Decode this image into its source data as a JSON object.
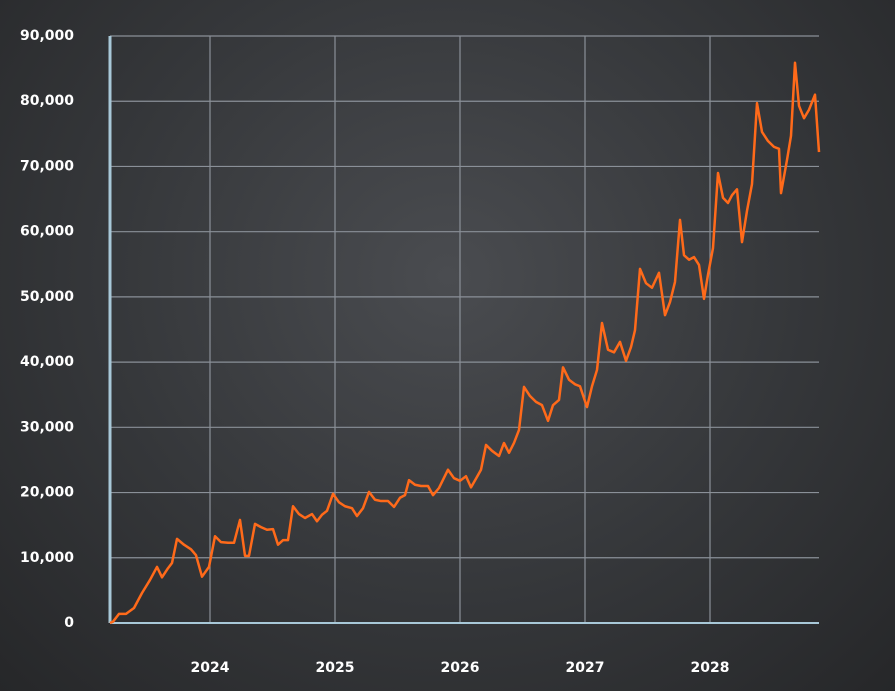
{
  "chart_data": {
    "type": "line",
    "x": [
      2023.2,
      2023.224,
      2023.272,
      2023.328,
      2023.392,
      2023.456,
      2023.52,
      2023.576,
      2023.616,
      2023.664,
      2023.696,
      2023.736,
      2023.792,
      2023.848,
      2023.888,
      2023.936,
      2023.992,
      2024.04,
      2024.088,
      2024.144,
      2024.192,
      2024.24,
      2024.28,
      2024.312,
      2024.36,
      2024.408,
      2024.456,
      2024.504,
      2024.544,
      2024.584,
      2024.624,
      2024.664,
      2024.712,
      2024.76,
      2024.816,
      2024.856,
      2024.896,
      2024.936,
      2024.984,
      2025.032,
      2025.08,
      2025.136,
      2025.176,
      2025.224,
      2025.272,
      2025.32,
      2025.368,
      2025.424,
      2025.472,
      2025.52,
      2025.56,
      2025.592,
      2025.64,
      2025.688,
      2025.744,
      2025.784,
      2025.832,
      2025.904,
      2025.952,
      2026.0,
      2026.048,
      2026.088,
      2026.136,
      2026.168,
      2026.208,
      2026.256,
      2026.312,
      2026.352,
      2026.392,
      2026.432,
      2026.472,
      2026.512,
      2026.56,
      2026.608,
      2026.656,
      2026.704,
      2026.744,
      2026.792,
      2026.824,
      2026.872,
      2026.92,
      2026.96,
      2027.016,
      2027.056,
      2027.096,
      2027.136,
      2027.184,
      2027.232,
      2027.28,
      2027.328,
      2027.368,
      2027.4,
      2027.44,
      2027.488,
      2027.536,
      2027.592,
      2027.64,
      2027.68,
      2027.72,
      2027.76,
      2027.792,
      2027.832,
      2027.872,
      2027.912,
      2027.952,
      2027.984,
      2028.024,
      2028.064,
      2028.104,
      2028.144,
      2028.176,
      2028.216,
      2028.256,
      2028.296,
      2028.336,
      2028.376,
      2028.416,
      2028.464,
      2028.512,
      2028.552,
      2028.568,
      2028.616,
      2028.648,
      2028.68,
      2028.712,
      2028.752,
      2028.792,
      2028.84,
      2028.872
    ],
    "series": [
      {
        "color": "#ff6a1a",
        "values": [
          0,
          200,
          1400,
          1400,
          2300,
          4600,
          6600,
          8600,
          7000,
          8400,
          9200,
          12900,
          12000,
          11300,
          10400,
          7100,
          8600,
          13300,
          12400,
          12300,
          12300,
          15800,
          10300,
          10300,
          15200,
          14700,
          14300,
          14400,
          12000,
          12700,
          12700,
          17900,
          16700,
          16100,
          16700,
          15600,
          16600,
          17200,
          19800,
          18500,
          17900,
          17600,
          16400,
          17600,
          20100,
          18900,
          18700,
          18700,
          17800,
          19200,
          19600,
          21900,
          21200,
          21000,
          21000,
          19600,
          20700,
          23500,
          22200,
          21800,
          22500,
          20800,
          22400,
          23500,
          27300,
          26400,
          25600,
          27600,
          26100,
          27600,
          29600,
          36200,
          34800,
          33900,
          33400,
          31000,
          33400,
          34200,
          39200,
          37300,
          36600,
          36300,
          33100,
          36300,
          38800,
          46000,
          41900,
          41500,
          43100,
          40200,
          42300,
          44900,
          54300,
          52100,
          51400,
          53700,
          47200,
          49200,
          52300,
          61800,
          56400,
          55700,
          56100,
          54900,
          49700,
          53400,
          57500,
          69000,
          65200,
          64400,
          65600,
          66500,
          58400,
          63200,
          67300,
          79700,
          75300,
          73900,
          73000,
          72700,
          65900,
          71000,
          74700,
          85900,
          79300,
          77400,
          78700,
          81000,
          72200
        ]
      }
    ],
    "xlim": [
      2023.2,
      2028.872
    ],
    "xticks": [
      2024,
      2025,
      2026,
      2027,
      2028
    ],
    "ylim": [
      0,
      90000
    ],
    "yticks": [
      0,
      {
        "value": 10000,
        "label": "10,000"
      },
      {
        "value": 20000,
        "label": "20,000"
      },
      {
        "value": 30000,
        "label": "30,000"
      },
      {
        "value": 40000,
        "label": "40,000"
      },
      {
        "value": 50000,
        "label": "50,000"
      },
      {
        "value": 60000,
        "label": "60,000"
      },
      {
        "value": 70000,
        "label": "70,000"
      },
      {
        "value": 80000,
        "label": "80,000"
      },
      {
        "value": 90000,
        "label": "90,000"
      }
    ],
    "grid": true
  }
}
